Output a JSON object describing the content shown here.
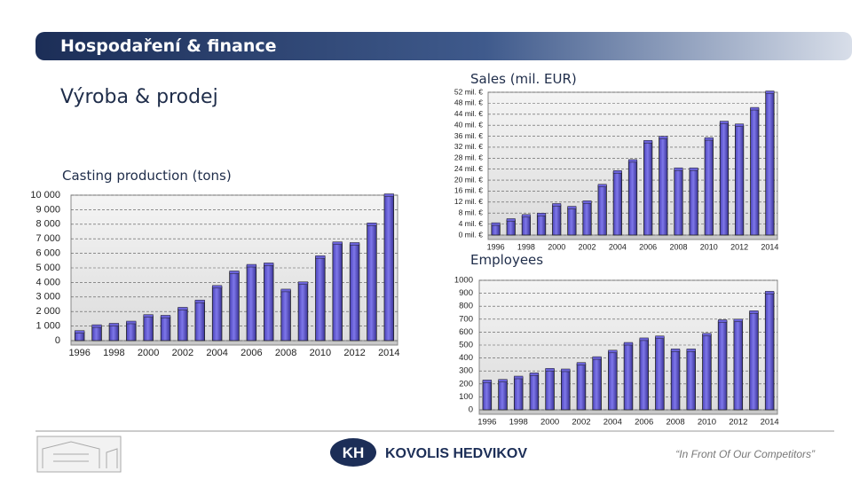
{
  "header": {
    "title": "Hospodaření & finance",
    "subtitle": "Výroba & prodej"
  },
  "footer": {
    "logo": "KH",
    "company": "KOVOLIS HEDVIKOV",
    "motto": "“In Front Of Our Competitors”"
  },
  "chart_data": [
    {
      "type": "bar",
      "title": "Casting production (tons)",
      "color": "#6a62d9",
      "grid": true,
      "categories": [
        "1996",
        null,
        "1998",
        null,
        "2000",
        null,
        "2002",
        null,
        "2004",
        null,
        "2006",
        null,
        "2008",
        null,
        "2010",
        null,
        "2012",
        null,
        "2014"
      ],
      "values": [
        600,
        1000,
        1100,
        1250,
        1700,
        1650,
        2200,
        2700,
        3700,
        4700,
        5150,
        5250,
        3450,
        3950,
        5750,
        6700,
        6650,
        8000,
        10000
      ],
      "ylim": [
        0,
        10000
      ],
      "yticks": [
        0,
        {
          "value": 1000,
          "label": "1 000"
        },
        {
          "value": 2000,
          "label": "2 000"
        },
        {
          "value": 3000,
          "label": "3 000"
        },
        {
          "value": 4000,
          "label": "4 000"
        },
        {
          "value": 5000,
          "label": "5 000"
        },
        {
          "value": 6000,
          "label": "6 000"
        },
        {
          "value": 7000,
          "label": "7 000"
        },
        {
          "value": 8000,
          "label": "8 000"
        },
        {
          "value": 9000,
          "label": "9 000"
        },
        {
          "value": 10000,
          "label": "10 000"
        }
      ]
    },
    {
      "type": "bar",
      "title": "Sales (mil. EUR)",
      "color": "#6a62d9",
      "grid": true,
      "categories": [
        "1996",
        null,
        "1998",
        null,
        "2000",
        null,
        "2002",
        null,
        "2004",
        null,
        "2006",
        null,
        "2008",
        null,
        "2010",
        null,
        "2012",
        null,
        "2014"
      ],
      "values": [
        4,
        5.5,
        7,
        7.5,
        11,
        10,
        12,
        18,
        23,
        27,
        34,
        35.5,
        24,
        24,
        35,
        41,
        40,
        46,
        52
      ],
      "ylim": [
        0,
        52
      ],
      "yticks": [
        {
          "value": 0,
          "label": "0 mil. €"
        },
        {
          "value": 4,
          "label": "4 mil. €"
        },
        {
          "value": 8,
          "label": "8 mil. €"
        },
        {
          "value": 12,
          "label": "12 mil. €"
        },
        {
          "value": 16,
          "label": "16 mil. €"
        },
        {
          "value": 20,
          "label": "20 mil. €"
        },
        {
          "value": 24,
          "label": "24 mil. €"
        },
        {
          "value": 28,
          "label": "28 mil. €"
        },
        {
          "value": 32,
          "label": "32 mil. €"
        },
        {
          "value": 36,
          "label": "36 mil. €"
        },
        {
          "value": 40,
          "label": "40 mil. €"
        },
        {
          "value": 44,
          "label": "44 mil. €"
        },
        {
          "value": 48,
          "label": "48 mil. €"
        },
        {
          "value": 52,
          "label": "52 mil. €"
        }
      ]
    },
    {
      "type": "bar",
      "title": "Employees",
      "color": "#6a62d9",
      "grid": true,
      "categories": [
        "1996",
        null,
        "1998",
        null,
        "2000",
        null,
        "2002",
        null,
        "2004",
        null,
        "2006",
        null,
        "2008",
        null,
        "2010",
        null,
        "2012",
        null,
        "2014"
      ],
      "values": [
        220,
        225,
        250,
        275,
        310,
        305,
        355,
        400,
        450,
        510,
        545,
        560,
        460,
        460,
        580,
        685,
        690,
        755,
        905
      ],
      "ylim": [
        0,
        1000
      ],
      "yticks": [
        0,
        100,
        200,
        300,
        400,
        500,
        600,
        700,
        800,
        900,
        1000
      ]
    }
  ]
}
